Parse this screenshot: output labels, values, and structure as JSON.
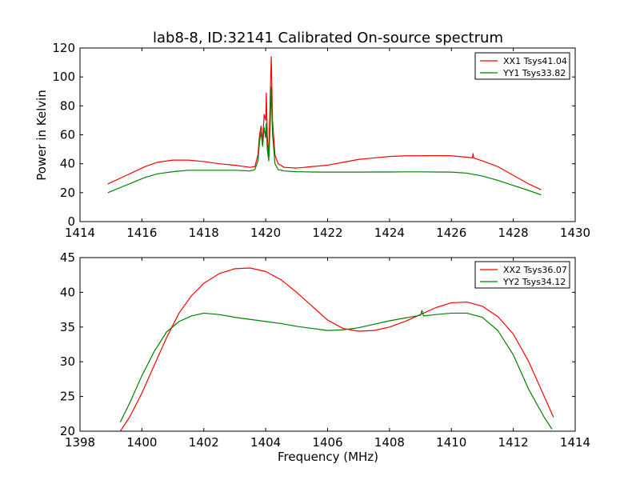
{
  "chart_data": {
    "title": "lab8-8, ID:32141 Calibrated On-source spectrum",
    "xlabel": "Frequency (MHz)",
    "ylabel": "Power in Kelvin",
    "colors": {
      "red": "#ff0000",
      "green": "#008000"
    },
    "charts": [
      {
        "type": "line",
        "xlim": [
          1414,
          1430
        ],
        "ylim": [
          0,
          120
        ],
        "xticks": [
          1414,
          1416,
          1418,
          1420,
          1422,
          1424,
          1426,
          1428,
          1430
        ],
        "yticks": [
          0,
          20,
          40,
          60,
          80,
          100,
          120
        ],
        "legend": "top-right",
        "series": [
          {
            "name": "XX1 Tsys41.04",
            "color": "#ff0000",
            "x": [
              1414.9,
              1415.3,
              1415.7,
              1416.1,
              1416.5,
              1417.0,
              1417.5,
              1418.0,
              1418.5,
              1419.0,
              1419.5,
              1419.65,
              1419.75,
              1419.8,
              1419.85,
              1419.9,
              1419.95,
              1420.0,
              1420.02,
              1420.05,
              1420.1,
              1420.15,
              1420.18,
              1420.22,
              1420.3,
              1420.4,
              1420.6,
              1421.0,
              1421.5,
              1422.0,
              1422.5,
              1423.0,
              1423.5,
              1424.0,
              1424.5,
              1425.0,
              1425.5,
              1426.0,
              1426.5,
              1426.68,
              1426.7,
              1426.72,
              1427.0,
              1427.5,
              1428.0,
              1428.5,
              1428.9
            ],
            "y": [
              26,
              30,
              34,
              38,
              41,
              42.5,
              42.5,
              41.5,
              40,
              39,
              37.5,
              38,
              46,
              60,
              66,
              55,
              74,
              70,
              89,
              60,
              45,
              90,
              114,
              70,
              46,
              40,
              37.5,
              37,
              38,
              39,
              41,
              43,
              44,
              45,
              45.5,
              45.5,
              45.6,
              45.5,
              44.5,
              44,
              47,
              44,
              42,
              38,
              32,
              26,
              22
            ]
          },
          {
            "name": "YY1 Tsys33.82",
            "color": "#008000",
            "x": [
              1414.9,
              1415.3,
              1415.7,
              1416.1,
              1416.5,
              1417.0,
              1417.5,
              1418.0,
              1418.5,
              1419.0,
              1419.5,
              1419.65,
              1419.75,
              1419.8,
              1419.85,
              1419.9,
              1419.95,
              1420.0,
              1420.02,
              1420.05,
              1420.1,
              1420.15,
              1420.18,
              1420.22,
              1420.3,
              1420.4,
              1420.6,
              1421.0,
              1421.5,
              1422.0,
              1422.5,
              1423.0,
              1423.5,
              1424.0,
              1424.5,
              1425.0,
              1425.5,
              1426.0,
              1426.5,
              1427.0,
              1427.5,
              1428.0,
              1428.5,
              1428.9
            ],
            "y": [
              20,
              23.5,
              27,
              30.5,
              33,
              34.5,
              35.5,
              35.5,
              35.5,
              35.5,
              35,
              36,
              42,
              55,
              62,
              52,
              65,
              58,
              68,
              50,
              42,
              70,
              93,
              60,
              40,
              36,
              35,
              34.5,
              34.3,
              34.2,
              34.2,
              34.2,
              34.3,
              34.3,
              34.4,
              34.4,
              34.3,
              34.2,
              33.5,
              31.5,
              28.5,
              25,
              21.5,
              18.5
            ]
          }
        ]
      },
      {
        "type": "line",
        "xlim": [
          1398,
          1414
        ],
        "ylim": [
          20,
          45
        ],
        "xticks": [
          1398,
          1400,
          1402,
          1404,
          1406,
          1408,
          1410,
          1412,
          1414
        ],
        "yticks": [
          20,
          25,
          30,
          35,
          40,
          45
        ],
        "legend": "top-right",
        "series": [
          {
            "name": "XX2 Tsys36.07",
            "color": "#ff0000",
            "x": [
              1399.3,
              1399.6,
              1400.0,
              1400.4,
              1400.8,
              1401.2,
              1401.6,
              1402.0,
              1402.5,
              1403.0,
              1403.5,
              1404.0,
              1404.5,
              1405.0,
              1405.5,
              1406.0,
              1406.5,
              1407.0,
              1407.5,
              1408.0,
              1408.5,
              1409.0,
              1409.5,
              1410.0,
              1410.5,
              1411.0,
              1411.5,
              1412.0,
              1412.5,
              1413.0,
              1413.3
            ],
            "y": [
              20,
              22,
              25.5,
              29.5,
              33.5,
              37,
              39.5,
              41.3,
              42.7,
              43.4,
              43.5,
              43.0,
              41.8,
              40.0,
              38.0,
              36.0,
              34.8,
              34.4,
              34.5,
              35.0,
              35.8,
              36.8,
              37.8,
              38.5,
              38.6,
              38.0,
              36.5,
              34,
              30,
              25,
              22
            ]
          },
          {
            "name": "YY2 Tsys34.12",
            "color": "#008000",
            "x": [
              1399.3,
              1399.6,
              1400.0,
              1400.4,
              1400.8,
              1401.2,
              1401.6,
              1402.0,
              1402.5,
              1403.0,
              1403.5,
              1404.0,
              1404.5,
              1405.0,
              1405.5,
              1406.0,
              1406.5,
              1407.0,
              1407.5,
              1408.0,
              1408.5,
              1409.0,
              1409.05,
              1409.1,
              1409.5,
              1410.0,
              1410.5,
              1411.0,
              1411.5,
              1412.0,
              1412.5,
              1413.0,
              1413.25
            ],
            "y": [
              21.3,
              24,
              28,
              31.5,
              34.3,
              35.8,
              36.6,
              37.0,
              36.8,
              36.4,
              36.1,
              35.8,
              35.5,
              35.1,
              34.8,
              34.5,
              34.6,
              34.9,
              35.4,
              35.9,
              36.3,
              36.7,
              37.4,
              36.6,
              36.8,
              37.0,
              37.0,
              36.4,
              34.5,
              31,
              26,
              22,
              20.3
            ]
          }
        ]
      }
    ]
  }
}
